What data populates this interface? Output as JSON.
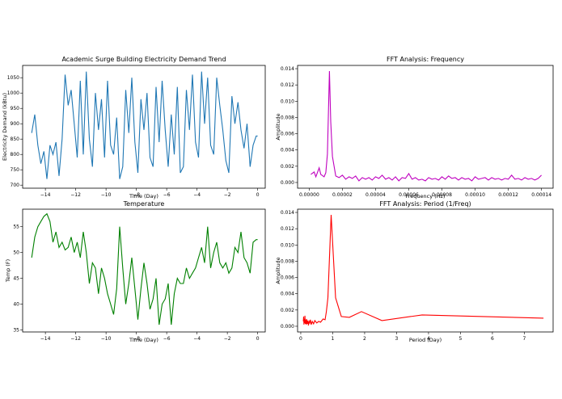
{
  "chart_data": [
    {
      "id": "demand",
      "type": "line",
      "title": "Academic Surge Building Electricity Demand Trend",
      "xlabel": "Time (Day)",
      "ylabel": "Electricity Demand (kBtu)",
      "xlim": [
        -15.5,
        0.5
      ],
      "ylim": [
        690,
        1090
      ],
      "xticks": [
        -14,
        -12,
        -10,
        -8,
        -6,
        -4,
        -2,
        0
      ],
      "yticks": [
        700,
        750,
        800,
        850,
        900,
        950,
        1000,
        1050
      ],
      "color": "#1f77b4",
      "grid": false,
      "legend": "none",
      "x": [
        -14.9,
        -14.7,
        -14.5,
        -14.3,
        -14.1,
        -13.9,
        -13.7,
        -13.5,
        -13.3,
        -13.1,
        -12.9,
        -12.7,
        -12.5,
        -12.3,
        -12.1,
        -11.9,
        -11.7,
        -11.5,
        -11.3,
        -11.1,
        -10.9,
        -10.7,
        -10.5,
        -10.3,
        -10.1,
        -9.9,
        -9.7,
        -9.5,
        -9.3,
        -9.1,
        -8.9,
        -8.7,
        -8.5,
        -8.3,
        -8.1,
        -7.9,
        -7.7,
        -7.5,
        -7.3,
        -7.1,
        -6.9,
        -6.7,
        -6.5,
        -6.3,
        -6.1,
        -5.9,
        -5.7,
        -5.5,
        -5.3,
        -5.1,
        -4.9,
        -4.7,
        -4.5,
        -4.3,
        -4.1,
        -3.9,
        -3.7,
        -3.5,
        -3.3,
        -3.1,
        -2.9,
        -2.7,
        -2.5,
        -2.3,
        -2.1,
        -1.9,
        -1.7,
        -1.5,
        -1.3,
        -1.1,
        -0.9,
        -0.7,
        -0.5,
        -0.3,
        -0.1,
        0.0
      ],
      "y": [
        870,
        930,
        830,
        770,
        810,
        720,
        830,
        800,
        840,
        730,
        850,
        1060,
        960,
        1010,
        900,
        790,
        1040,
        800,
        1070,
        850,
        760,
        1000,
        880,
        980,
        790,
        1040,
        830,
        800,
        920,
        720,
        760,
        1010,
        870,
        1050,
        840,
        740,
        980,
        880,
        1000,
        790,
        760,
        1020,
        840,
        1040,
        880,
        760,
        930,
        800,
        1020,
        740,
        760,
        1010,
        880,
        1060,
        840,
        790,
        1070,
        900,
        1050,
        830,
        800,
        1050,
        960,
        880,
        780,
        740,
        990,
        900,
        970,
        880,
        820,
        900,
        760,
        830,
        860,
        860
      ]
    },
    {
      "id": "fft-freq",
      "type": "line",
      "title": "FFT Analysis: Frequency",
      "xlabel": "Frequency (Hz)",
      "ylabel": "Amplitude",
      "xlim": [
        -7e-06,
        0.000147
      ],
      "ylim": [
        -0.0007,
        0.0144
      ],
      "xticks": [
        0.0,
        2e-05,
        4e-05,
        6e-05,
        8e-05,
        0.0001,
        0.00012,
        0.00014
      ],
      "xticklabels": [
        "0.00000",
        "0.00002",
        "0.00004",
        "0.00006",
        "0.00008",
        "0.00010",
        "0.00012",
        "0.00014"
      ],
      "yticks": [
        0.0,
        0.002,
        0.004,
        0.006,
        0.008,
        0.01,
        0.012,
        0.014
      ],
      "yticklabels": [
        "0.000",
        "0.002",
        "0.004",
        "0.006",
        "0.008",
        "0.010",
        "0.012",
        "0.014"
      ],
      "color": "#bf00bf",
      "grid": false,
      "legend": "none",
      "x": [
        1e-06,
        3e-06,
        4e-06,
        6e-06,
        7e-06,
        9e-06,
        1e-05,
        1.1e-05,
        1.22e-05,
        1.3e-05,
        1.4e-05,
        1.6e-05,
        1.8e-05,
        2e-05,
        2.2e-05,
        2.4e-05,
        2.6e-05,
        2.8e-05,
        3e-05,
        3.2e-05,
        3.4e-05,
        3.6e-05,
        3.8e-05,
        4e-05,
        4.2e-05,
        4.4e-05,
        4.6e-05,
        4.8e-05,
        5e-05,
        5.2e-05,
        5.4e-05,
        5.6e-05,
        5.8e-05,
        6e-05,
        6.2e-05,
        6.4e-05,
        6.6e-05,
        6.8e-05,
        7e-05,
        7.2e-05,
        7.4e-05,
        7.6e-05,
        7.8e-05,
        8e-05,
        8.2e-05,
        8.4e-05,
        8.6e-05,
        8.8e-05,
        9e-05,
        9.2e-05,
        9.4e-05,
        9.6e-05,
        9.8e-05,
        0.0001,
        0.000102,
        0.000104,
        0.000106,
        0.000108,
        0.00011,
        0.000112,
        0.000114,
        0.000116,
        0.000118,
        0.00012,
        0.000122,
        0.000124,
        0.000126,
        0.000128,
        0.00013,
        0.000132,
        0.000134,
        0.000136,
        0.000138,
        0.00014
      ],
      "y": [
        0.001,
        0.0013,
        0.0007,
        0.0018,
        0.001,
        0.0007,
        0.0012,
        0.0035,
        0.0137,
        0.0075,
        0.0032,
        0.0008,
        0.0006,
        0.0009,
        0.0004,
        0.0007,
        0.0005,
        0.0008,
        0.0002,
        0.0006,
        0.0004,
        0.0006,
        0.0003,
        0.0007,
        0.0005,
        0.0009,
        0.0004,
        0.0006,
        0.0003,
        0.0007,
        0.0002,
        0.0006,
        0.0005,
        0.0011,
        0.0004,
        0.0006,
        0.0003,
        0.0004,
        0.0002,
        0.0006,
        0.0004,
        0.0005,
        0.0003,
        0.0007,
        0.0004,
        0.0008,
        0.0005,
        0.0006,
        0.0003,
        0.0006,
        0.0004,
        0.0005,
        0.0002,
        0.0007,
        0.0004,
        0.0005,
        0.0006,
        0.0003,
        0.0006,
        0.0004,
        0.0005,
        0.0003,
        0.0005,
        0.0004,
        0.0009,
        0.0004,
        0.0005,
        0.0003,
        0.0006,
        0.0004,
        0.0005,
        0.0003,
        0.0005,
        0.0009
      ]
    },
    {
      "id": "temperature",
      "type": "line",
      "title": "Temperature",
      "xlabel": "Time (Day)",
      "ylabel": "Temp (F)",
      "xlim": [
        -15.5,
        0.5
      ],
      "ylim": [
        34.6,
        58.4
      ],
      "xticks": [
        -14,
        -12,
        -10,
        -8,
        -6,
        -4,
        -2,
        0
      ],
      "yticks": [
        35,
        40,
        45,
        50,
        55
      ],
      "color": "#008000",
      "grid": false,
      "legend": "none",
      "x": [
        -14.9,
        -14.7,
        -14.5,
        -14.3,
        -14.1,
        -13.9,
        -13.7,
        -13.5,
        -13.3,
        -13.1,
        -12.9,
        -12.7,
        -12.5,
        -12.3,
        -12.1,
        -11.9,
        -11.7,
        -11.5,
        -11.3,
        -11.1,
        -10.9,
        -10.7,
        -10.5,
        -10.3,
        -10.1,
        -9.9,
        -9.7,
        -9.5,
        -9.3,
        -9.1,
        -8.9,
        -8.7,
        -8.5,
        -8.3,
        -8.1,
        -7.9,
        -7.7,
        -7.5,
        -7.3,
        -7.1,
        -6.9,
        -6.7,
        -6.5,
        -6.3,
        -6.1,
        -5.9,
        -5.7,
        -5.5,
        -5.3,
        -5.1,
        -4.9,
        -4.7,
        -4.5,
        -4.3,
        -4.1,
        -3.9,
        -3.7,
        -3.5,
        -3.3,
        -3.1,
        -2.9,
        -2.7,
        -2.5,
        -2.3,
        -2.1,
        -1.9,
        -1.7,
        -1.5,
        -1.3,
        -1.1,
        -0.9,
        -0.7,
        -0.5,
        -0.3,
        -0.1,
        0.0
      ],
      "y": [
        49,
        53,
        55,
        56,
        57,
        57.5,
        56,
        52,
        54,
        51,
        52,
        50.5,
        51,
        53,
        50,
        52,
        49,
        54,
        50,
        44,
        48,
        47,
        42,
        47,
        45,
        42,
        40,
        38,
        43,
        55,
        47,
        40,
        44,
        49,
        43,
        37,
        43,
        48,
        44,
        39,
        41,
        45,
        36,
        40,
        41,
        44,
        36,
        42,
        45,
        44,
        44,
        47,
        45,
        46,
        47,
        49,
        51,
        48,
        55,
        47,
        50,
        52,
        48,
        47,
        48,
        46,
        47,
        51,
        50,
        54,
        49,
        48,
        46,
        52,
        52.5,
        52.5
      ]
    },
    {
      "id": "fft-period",
      "type": "line",
      "title": "FFT Analysis: Period (1/Freq)",
      "xlabel": "Period (Day)",
      "ylabel": "Amplitude",
      "xlim": [
        -0.1,
        7.9
      ],
      "ylim": [
        -0.0007,
        0.0144
      ],
      "xticks": [
        0,
        1,
        2,
        3,
        4,
        5,
        6,
        7
      ],
      "yticks": [
        0.0,
        0.002,
        0.004,
        0.006,
        0.008,
        0.01,
        0.012,
        0.014
      ],
      "yticklabels": [
        "0.000",
        "0.002",
        "0.004",
        "0.006",
        "0.008",
        "0.010",
        "0.012",
        "0.014"
      ],
      "color": "#ff0000",
      "grid": false,
      "legend": "none",
      "x": [
        0.08,
        0.09,
        0.1,
        0.11,
        0.12,
        0.13,
        0.14,
        0.15,
        0.16,
        0.17,
        0.18,
        0.2,
        0.22,
        0.24,
        0.26,
        0.28,
        0.3,
        0.33,
        0.36,
        0.4,
        0.44,
        0.5,
        0.56,
        0.62,
        0.7,
        0.76,
        0.8,
        0.85,
        0.95,
        1.09,
        1.27,
        1.52,
        1.9,
        2.54,
        3.8,
        7.6
      ],
      "y": [
        0.0006,
        0.0012,
        0.0002,
        0.0009,
        0.0004,
        0.0013,
        0.0003,
        0.0008,
        0.0005,
        0.0002,
        0.0009,
        0.0003,
        0.0007,
        0.0001,
        0.0006,
        0.0004,
        0.0008,
        0.0002,
        0.0006,
        0.0003,
        0.0007,
        0.0004,
        0.0006,
        0.0005,
        0.0009,
        0.0008,
        0.0018,
        0.0035,
        0.0137,
        0.0035,
        0.0012,
        0.0011,
        0.0018,
        0.0007,
        0.0014,
        0.001
      ]
    }
  ]
}
